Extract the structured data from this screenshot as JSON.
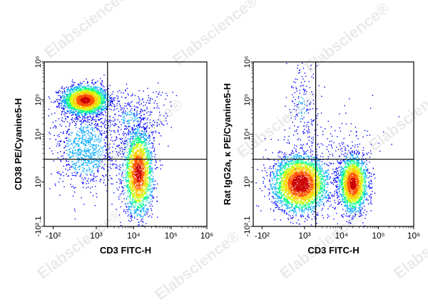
{
  "watermark": "Elabscience®",
  "colormap": [
    "#0000ff",
    "#00aaff",
    "#00ff88",
    "#ccff00",
    "#ffcc00",
    "#ff5500",
    "#cc0000"
  ],
  "chart_data": [
    {
      "type": "scatter",
      "subtype": "flow-cytometry-density-dot-plot",
      "xlabel": "CD3 FITC-H",
      "ylabel": "CD38 PE/Cyanine5-H",
      "x_ticks": [
        "-10²",
        "10³",
        "10⁴",
        "10⁵",
        "10⁶"
      ],
      "y_ticks": [
        "-10².1",
        "10³",
        "10⁴",
        "10⁵",
        "10⁶"
      ],
      "x_scale": "biexponential",
      "y_scale": "biexponential",
      "x_gate": 2000,
      "y_gate": 3000,
      "populations": [
        {
          "x_center": 400,
          "y_center": 100000,
          "count": 2400
        },
        {
          "x_center": 13000,
          "y_center": 1600,
          "count": 2200
        },
        {
          "x_center": 400,
          "y_center": 5000,
          "count": 900
        },
        {
          "x_center": 8000,
          "y_center": 30000,
          "count": 400
        }
      ]
    },
    {
      "type": "scatter",
      "subtype": "flow-cytometry-density-dot-plot",
      "xlabel": "CD3 FITC-H",
      "ylabel": "Rat IgG2a, κ PE/Cyanine5-H",
      "x_ticks": [
        "-10²",
        "10³",
        "10⁴",
        "10⁵",
        "10⁶"
      ],
      "y_ticks": [
        "-10².1",
        "10³",
        "10⁴",
        "10⁵",
        "10⁶"
      ],
      "x_scale": "biexponential",
      "y_scale": "biexponential",
      "x_gate": 2000,
      "y_gate": 3000,
      "populations": [
        {
          "x_center": 700,
          "y_center": 900,
          "count": 3200
        },
        {
          "x_center": 20000,
          "y_center": 900,
          "count": 2000
        },
        {
          "x_center": 800,
          "y_center": 60000,
          "count": 180
        },
        {
          "x_center": 6000,
          "y_center": 8000,
          "count": 120
        }
      ]
    }
  ]
}
